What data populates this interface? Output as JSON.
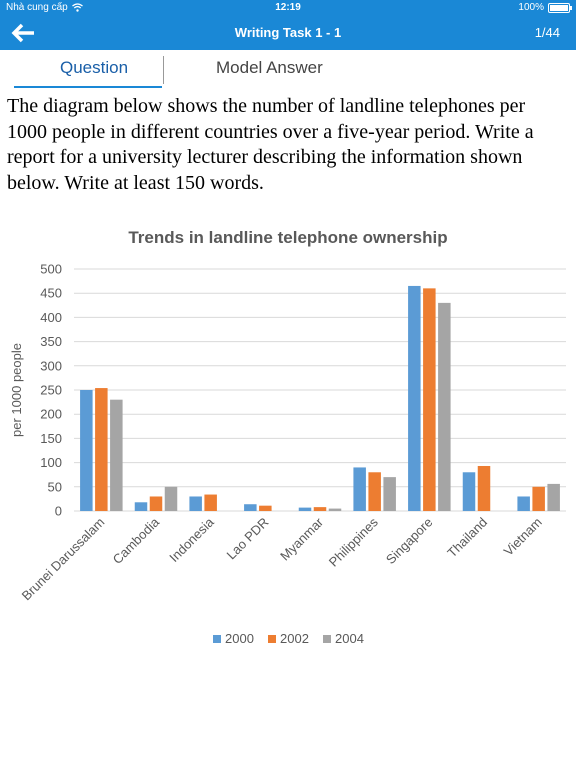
{
  "status_bar": {
    "carrier": "Nhà cung cấp",
    "time": "12:19",
    "battery": "100%"
  },
  "nav": {
    "title": "Writing Task 1 - 1",
    "page_counter": "1/44"
  },
  "tabs": [
    {
      "label": "Question"
    },
    {
      "label": "Model Answer"
    }
  ],
  "question": {
    "text": "The diagram below shows the number of landline telephones per 1000 people in different countries over a five-year period. Write a report for a university lecturer describing the information shown below. Write at least 150 words."
  },
  "chart_data": {
    "type": "bar",
    "title": "Trends in landline telephone ownership",
    "xlabel": "",
    "ylabel": "per 1000 people",
    "ylim": [
      0,
      500
    ],
    "yticks": [
      0,
      50,
      100,
      150,
      200,
      250,
      300,
      350,
      400,
      450,
      500
    ],
    "grid": true,
    "legend_position": "bottom",
    "categories": [
      "Brunei Darussalam",
      "Cambodia",
      "Indonesia",
      "Lao PDR",
      "Myanmar",
      "Philippines",
      "Singapore",
      "Thailand",
      "Vietnam"
    ],
    "series": [
      {
        "name": "2000",
        "color": "#5b9bd5",
        "values": [
          250,
          18,
          30,
          14,
          7,
          90,
          465,
          80,
          30
        ]
      },
      {
        "name": "2002",
        "color": "#ed7d31",
        "values": [
          254,
          30,
          34,
          11,
          8,
          80,
          460,
          93,
          50
        ]
      },
      {
        "name": "2004",
        "color": "#a5a5a5",
        "values": [
          230,
          50,
          0,
          0,
          5,
          70,
          430,
          0,
          56
        ]
      }
    ]
  }
}
